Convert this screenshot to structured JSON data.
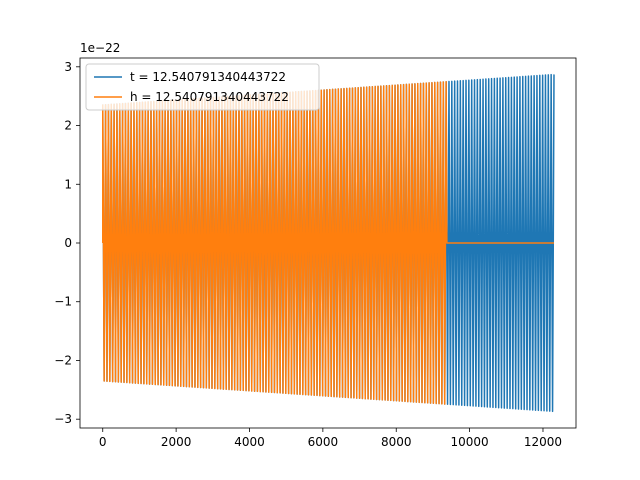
{
  "chart_data": {
    "type": "line",
    "title": "",
    "xlabel": "",
    "ylabel": "",
    "y_offset_label": "1e−22",
    "xlim": [
      -620,
      12900
    ],
    "ylim": [
      -3.15,
      3.15
    ],
    "xticks": [
      {
        "value": 0,
        "label": "0"
      },
      {
        "value": 2000,
        "label": "2000"
      },
      {
        "value": 4000,
        "label": "4000"
      },
      {
        "value": 6000,
        "label": "6000"
      },
      {
        "value": 8000,
        "label": "8000"
      },
      {
        "value": 10000,
        "label": "10000"
      },
      {
        "value": 12000,
        "label": "12000"
      }
    ],
    "yticks": [
      {
        "value": -3,
        "label": "−3"
      },
      {
        "value": -2,
        "label": "−2"
      },
      {
        "value": -1,
        "label": "−1"
      },
      {
        "value": 0,
        "label": "0"
      },
      {
        "value": 1,
        "label": "1"
      },
      {
        "value": 2,
        "label": "2"
      },
      {
        "value": 3,
        "label": "3"
      }
    ],
    "grid": false,
    "legend_position": "top-left",
    "series": [
      {
        "name": "t = 12.540791340443722",
        "color": "#1f77b4",
        "x_start": 0,
        "x_end": 12300,
        "amplitude_start": 2.35,
        "amplitude_end": 2.87,
        "signal_end": 12300,
        "zero_tail_until": 12300,
        "cycles": 160
      },
      {
        "name": "h = 12.540791340443722",
        "color": "#ff7f0e",
        "x_start": 0,
        "x_end": 12300,
        "amplitude_start": 2.35,
        "amplitude_end": 2.87,
        "signal_end": 9380,
        "zero_tail_until": 12300,
        "cycles": 160
      }
    ]
  }
}
